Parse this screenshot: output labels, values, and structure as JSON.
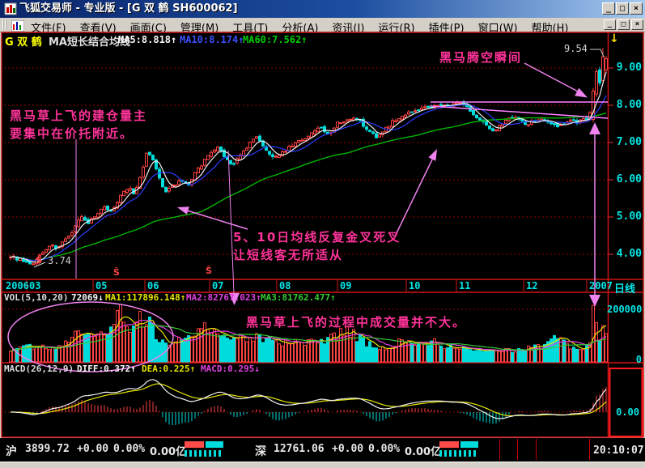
{
  "title_bar": {
    "title": "飞狐交易师 - 专业版 - [G 双  鹤 SH600062]"
  },
  "window_controls": {
    "minimize": "_",
    "restore": "□",
    "close": "×"
  },
  "menu_bar": {
    "items": [
      "文件(F)",
      "查看(V)",
      "画面(C)",
      "管理(M)",
      "工具(T)",
      "分析(A)",
      "资讯(I)",
      "运行(R)",
      "插件(P)",
      "窗口(W)",
      "帮助(H)"
    ]
  },
  "chart_header": {
    "code": "G 双  鹤",
    "indicator": "MA短长结合均线",
    "ma5": "MA5:8.818↑",
    "ma10": "MA10:8.174↑",
    "ma60": "MA60:7.562↑"
  },
  "indicator_icon": "↓",
  "price_axis": {
    "labels": [
      "9.00",
      "8.00",
      "7.00",
      "6.00",
      "5.00",
      "4.00"
    ]
  },
  "date_axis": {
    "labels": [
      "2006",
      "03",
      "05",
      "06",
      "07",
      "08",
      "09",
      "10",
      "11",
      "12",
      "2007"
    ],
    "period_label": "日线"
  },
  "volume_header": {
    "name": "VOL(5,10,20)",
    "value": "72069↓",
    "ma1": "MA1:117896.148↑",
    "ma2": "MA2:82767.023↑",
    "ma3": "MA3:81762.477↑"
  },
  "volume_axis": {
    "max": "200000",
    "zero": "0"
  },
  "macd_header": {
    "name": "MACD(26,12,9)",
    "diff": "DIFF:0.372↑",
    "dea": "DEA:0.225↑",
    "macd": "MACD:0.295↓"
  },
  "macd_axis": {
    "zero": "0.00"
  },
  "annotations": {
    "accumulation_line1": "黑马草上飞的建仓量主",
    "accumulation_line2": "要集中在价托附近。",
    "takeoff": "黑马腾空瞬间",
    "cross_line1": "5、10日均线反复金叉死叉",
    "cross_line2": "让短线客无所适从",
    "volume_note": "黑马草上飞的过程中成交量并不大。",
    "peak_price": "9.54",
    "low_price": "3.74",
    "low_marker": "$",
    "dividend_marker": "Ŝ"
  },
  "status_bar": {
    "sh": {
      "label": "沪",
      "price": "3899.72",
      "change": "+0.00",
      "pct": "0.00%",
      "amount": "0.00亿"
    },
    "sz": {
      "label": "深",
      "price": "12761.06",
      "change": "+0.00",
      "pct": "0.00%",
      "amount": "0.00亿"
    },
    "time": "20:10:07"
  },
  "colors": {
    "up": "#ff4242",
    "down": "#00dcdc",
    "ma5": "#f0f0f0",
    "ma10": "#2b3cff",
    "ma60": "#00b400",
    "vol_ma1": "#e6e600",
    "vol_ma2": "#e040e0",
    "vol_ma3": "#33cc33",
    "grid": "#9b0000",
    "frame": "#d01414",
    "axis_text": "#00e5e5",
    "annotation_text": "#ff3399",
    "annotation_line": "#ee82ee",
    "trendline": "#ff80ff"
  },
  "chart_data": {
    "type": "candlestick",
    "symbol": "SH600062",
    "name": "G 双 鹤",
    "period": "日线",
    "title": "MA短长结合均线",
    "ylim": [
      3.74,
      9.54
    ],
    "price_ticks": [
      9.0,
      8.0,
      7.0,
      6.0,
      5.0,
      4.0
    ],
    "high_label": 9.54,
    "low_label": 3.74,
    "ma_values": {
      "ma5": 8.818,
      "ma10": 8.174,
      "ma60": 7.562
    },
    "last_volume": 72069,
    "vol_ma_values": {
      "ma1": 117896.148,
      "ma2": 82767.023,
      "ma3": 81762.477
    },
    "volume_ticks": [
      200000,
      0
    ],
    "macd_values": {
      "diff": 0.372,
      "dea": 0.225,
      "macd": 0.295
    },
    "close_anchors": [
      [
        14,
        3.95
      ],
      [
        28,
        3.82
      ],
      [
        40,
        3.74
      ],
      [
        52,
        4.05
      ],
      [
        62,
        4.28
      ],
      [
        72,
        4.15
      ],
      [
        82,
        4.42
      ],
      [
        92,
        4.7
      ],
      [
        100,
        5.05
      ],
      [
        108,
        4.85
      ],
      [
        118,
        5.0
      ],
      [
        128,
        5.3
      ],
      [
        138,
        5.15
      ],
      [
        148,
        5.55
      ],
      [
        158,
        5.8
      ],
      [
        166,
        5.6
      ],
      [
        174,
        6.1
      ],
      [
        182,
        6.8
      ],
      [
        188,
        6.55
      ],
      [
        196,
        6.1
      ],
      [
        204,
        5.65
      ],
      [
        212,
        5.8
      ],
      [
        222,
        6.0
      ],
      [
        232,
        5.85
      ],
      [
        242,
        6.2
      ],
      [
        252,
        6.5
      ],
      [
        262,
        6.75
      ],
      [
        270,
        6.9
      ],
      [
        278,
        6.55
      ],
      [
        288,
        6.4
      ],
      [
        298,
        6.65
      ],
      [
        308,
        6.95
      ],
      [
        318,
        7.15
      ],
      [
        326,
        6.9
      ],
      [
        336,
        6.6
      ],
      [
        346,
        6.65
      ],
      [
        356,
        6.85
      ],
      [
        366,
        7.0
      ],
      [
        376,
        7.1
      ],
      [
        386,
        7.25
      ],
      [
        396,
        7.4
      ],
      [
        406,
        7.2
      ],
      [
        416,
        7.5
      ],
      [
        426,
        7.6
      ],
      [
        436,
        7.7
      ],
      [
        446,
        7.55
      ],
      [
        456,
        7.3
      ],
      [
        464,
        7.15
      ],
      [
        472,
        7.25
      ],
      [
        482,
        7.5
      ],
      [
        492,
        7.65
      ],
      [
        502,
        7.75
      ],
      [
        512,
        7.85
      ],
      [
        522,
        7.95
      ],
      [
        532,
        7.9
      ],
      [
        542,
        8.0
      ],
      [
        552,
        7.95
      ],
      [
        560,
        8.02
      ],
      [
        570,
        8.05
      ],
      [
        578,
        7.9
      ],
      [
        586,
        7.75
      ],
      [
        594,
        7.6
      ],
      [
        602,
        7.45
      ],
      [
        610,
        7.3
      ],
      [
        618,
        7.45
      ],
      [
        626,
        7.6
      ],
      [
        634,
        7.7
      ],
      [
        642,
        7.6
      ],
      [
        650,
        7.5
      ],
      [
        658,
        7.55
      ],
      [
        666,
        7.65
      ],
      [
        674,
        7.6
      ],
      [
        682,
        7.5
      ],
      [
        690,
        7.4
      ],
      [
        698,
        7.5
      ],
      [
        706,
        7.6
      ],
      [
        714,
        7.55
      ],
      [
        722,
        7.6
      ],
      [
        728,
        7.7
      ],
      [
        732,
        7.95
      ],
      [
        736,
        8.35
      ],
      [
        740,
        8.9
      ],
      [
        743,
        8.65
      ],
      [
        746,
        9.2
      ],
      [
        750,
        9.3
      ]
    ],
    "volume_anchors": [
      [
        14,
        40000
      ],
      [
        40,
        60000
      ],
      [
        70,
        55000
      ],
      [
        95,
        100000
      ],
      [
        120,
        95000
      ],
      [
        140,
        130000
      ],
      [
        150,
        215000
      ],
      [
        160,
        125000
      ],
      [
        170,
        155000
      ],
      [
        183,
        180000
      ],
      [
        195,
        90000
      ],
      [
        208,
        65000
      ],
      [
        222,
        80000
      ],
      [
        240,
        105000
      ],
      [
        255,
        130000
      ],
      [
        270,
        95000
      ],
      [
        285,
        78000
      ],
      [
        300,
        88000
      ],
      [
        315,
        100000
      ],
      [
        330,
        82000
      ],
      [
        345,
        70000
      ],
      [
        362,
        82000
      ],
      [
        378,
        68000
      ],
      [
        395,
        78000
      ],
      [
        412,
        95000
      ],
      [
        428,
        118000
      ],
      [
        445,
        85000
      ],
      [
        460,
        62000
      ],
      [
        475,
        55000
      ],
      [
        490,
        72000
      ],
      [
        505,
        82000
      ],
      [
        520,
        68000
      ],
      [
        535,
        75000
      ],
      [
        550,
        60000
      ],
      [
        565,
        52000
      ],
      [
        580,
        50000
      ],
      [
        595,
        42000
      ],
      [
        610,
        38000
      ],
      [
        625,
        48000
      ],
      [
        640,
        44000
      ],
      [
        655,
        52000
      ],
      [
        668,
        58000
      ],
      [
        680,
        75000
      ],
      [
        690,
        115000
      ],
      [
        700,
        70000
      ],
      [
        710,
        50000
      ],
      [
        720,
        45000
      ],
      [
        727,
        55000
      ],
      [
        731,
        75000
      ],
      [
        734,
        215000
      ],
      [
        738,
        115000
      ],
      [
        742,
        95000
      ],
      [
        746,
        125000
      ],
      [
        750,
        105000
      ]
    ]
  }
}
